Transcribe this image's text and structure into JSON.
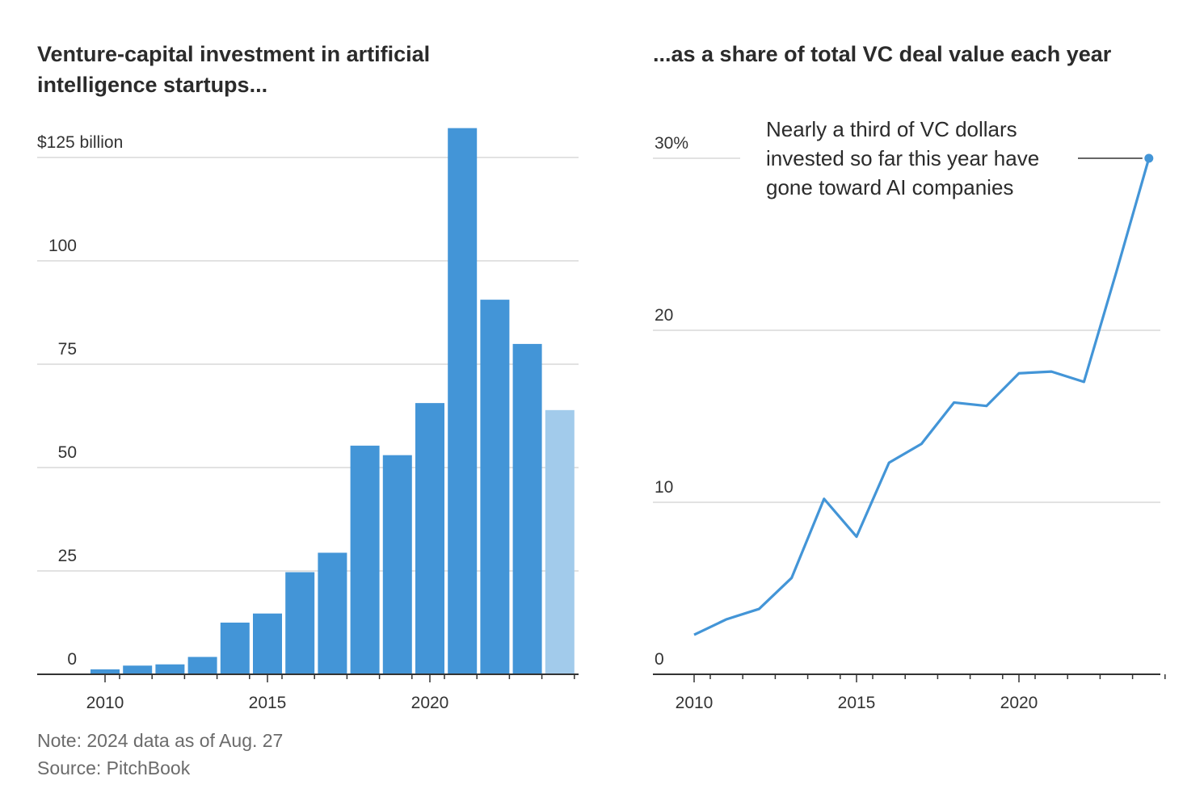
{
  "left_chart": {
    "title": "Venture-capital investment in artificial intelligence startups...",
    "y_ticks": [
      {
        "value": 125,
        "label": "$125 billion"
      },
      {
        "value": 100,
        "label": "100"
      },
      {
        "value": 75,
        "label": "75"
      },
      {
        "value": 50,
        "label": "50"
      },
      {
        "value": 25,
        "label": "25"
      },
      {
        "value": 0,
        "label": "0"
      }
    ],
    "x_ticks": [
      {
        "value": 2010,
        "label": "2010"
      },
      {
        "value": 2015,
        "label": "2015"
      },
      {
        "value": 2020,
        "label": "2020"
      }
    ]
  },
  "right_chart": {
    "title": "...as a share of total VC deal value each year",
    "annotation": "Nearly a third of VC dollars invested so far this year have gone toward AI companies",
    "y_ticks": [
      {
        "value": 30,
        "label": "30%"
      },
      {
        "value": 20,
        "label": "20"
      },
      {
        "value": 10,
        "label": "10"
      },
      {
        "value": 0,
        "label": "0"
      }
    ],
    "x_ticks": [
      {
        "value": 2010,
        "label": "2010"
      },
      {
        "value": 2015,
        "label": "2015"
      },
      {
        "value": 2020,
        "label": "2020"
      }
    ]
  },
  "footer": {
    "note": "Note: 2024 data as of Aug. 27",
    "source": "Source: PitchBook"
  },
  "colors": {
    "bar": "#4395d7",
    "bar_partial": "#a2cbeb",
    "line": "#4395d7",
    "grid": "#d9d9d9",
    "axis": "#333333"
  },
  "chart_data": [
    {
      "type": "bar",
      "title": "Venture-capital investment in artificial intelligence startups...",
      "ylabel": "$125 billion",
      "categories": [
        2010,
        2011,
        2012,
        2013,
        2014,
        2015,
        2016,
        2017,
        2018,
        2019,
        2020,
        2021,
        2022,
        2023,
        2024
      ],
      "values": [
        1.2,
        2.1,
        2.4,
        4.2,
        12.5,
        14.7,
        24.7,
        29.4,
        55.3,
        53.0,
        65.6,
        132.1,
        90.6,
        79.9,
        63.9
      ],
      "partial_category": 2024,
      "ylim": [
        0,
        132
      ],
      "grid": true
    },
    {
      "type": "line",
      "title": "...as a share of total VC deal value each year",
      "ylabel": "30%",
      "x": [
        2010,
        2011,
        2012,
        2013,
        2014,
        2015,
        2016,
        2017,
        2018,
        2019,
        2020,
        2021,
        2022,
        2023,
        2024
      ],
      "y": [
        2.3,
        3.2,
        3.8,
        5.6,
        10.2,
        8.0,
        12.3,
        13.4,
        15.8,
        15.6,
        17.5,
        17.6,
        17.0,
        23.4,
        30.0
      ],
      "ylim": [
        0,
        32
      ],
      "grid": true
    }
  ]
}
